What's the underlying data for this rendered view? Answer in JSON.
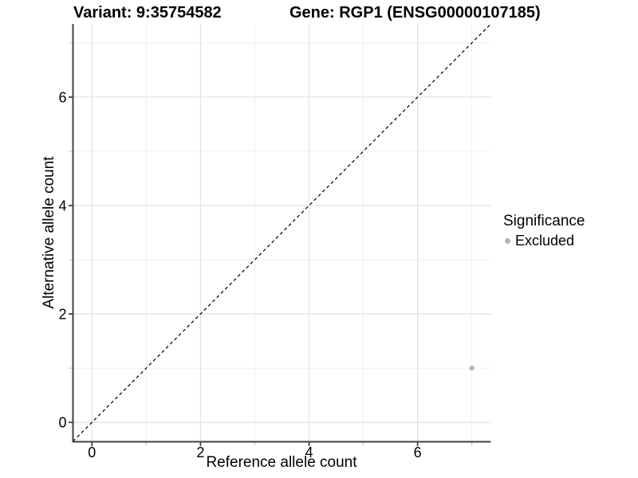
{
  "titles": {
    "variant": "Variant: 9:35754582",
    "gene": "Gene: RGP1 (ENSG00000107185)"
  },
  "axes": {
    "x_label": "Reference allele count",
    "y_label": "Alternative allele count"
  },
  "legend": {
    "title": "Significance",
    "items": [
      {
        "label": "Excluded",
        "color": "#b3b3b3"
      }
    ]
  },
  "colors": {
    "background": "#ffffff",
    "major_grid": "#e3e3e3",
    "minor_grid": "#efefef",
    "axis_line": "#404040",
    "major_tick": "#404040",
    "minor_tick": "#c9c9c9",
    "tick_text": "#000000",
    "reference_line": "#000000",
    "point": "#b3b3b3"
  },
  "chart_data": {
    "type": "scatter",
    "title": "Variant: 9:35754582    Gene: RGP1 (ENSG00000107185)",
    "xlabel": "Reference allele count",
    "ylabel": "Alternative allele count",
    "xlim": [
      -0.35,
      7.35
    ],
    "ylim": [
      -0.35,
      7.35
    ],
    "x_ticks": [
      0,
      2,
      4,
      6
    ],
    "y_ticks": [
      0,
      2,
      4,
      6
    ],
    "x_minor_ticks": [
      1,
      3,
      5,
      7
    ],
    "y_minor_ticks": [
      1,
      3,
      5,
      7
    ],
    "grid": true,
    "legend_position": "right",
    "reference_line": {
      "type": "identity",
      "from": [
        -0.35,
        -0.35
      ],
      "to": [
        7.35,
        7.35
      ],
      "style": "dashed",
      "color": "#000000"
    },
    "series": [
      {
        "name": "Excluded",
        "color": "#b3b3b3",
        "points": [
          {
            "x": 7,
            "y": 1
          }
        ]
      }
    ]
  }
}
